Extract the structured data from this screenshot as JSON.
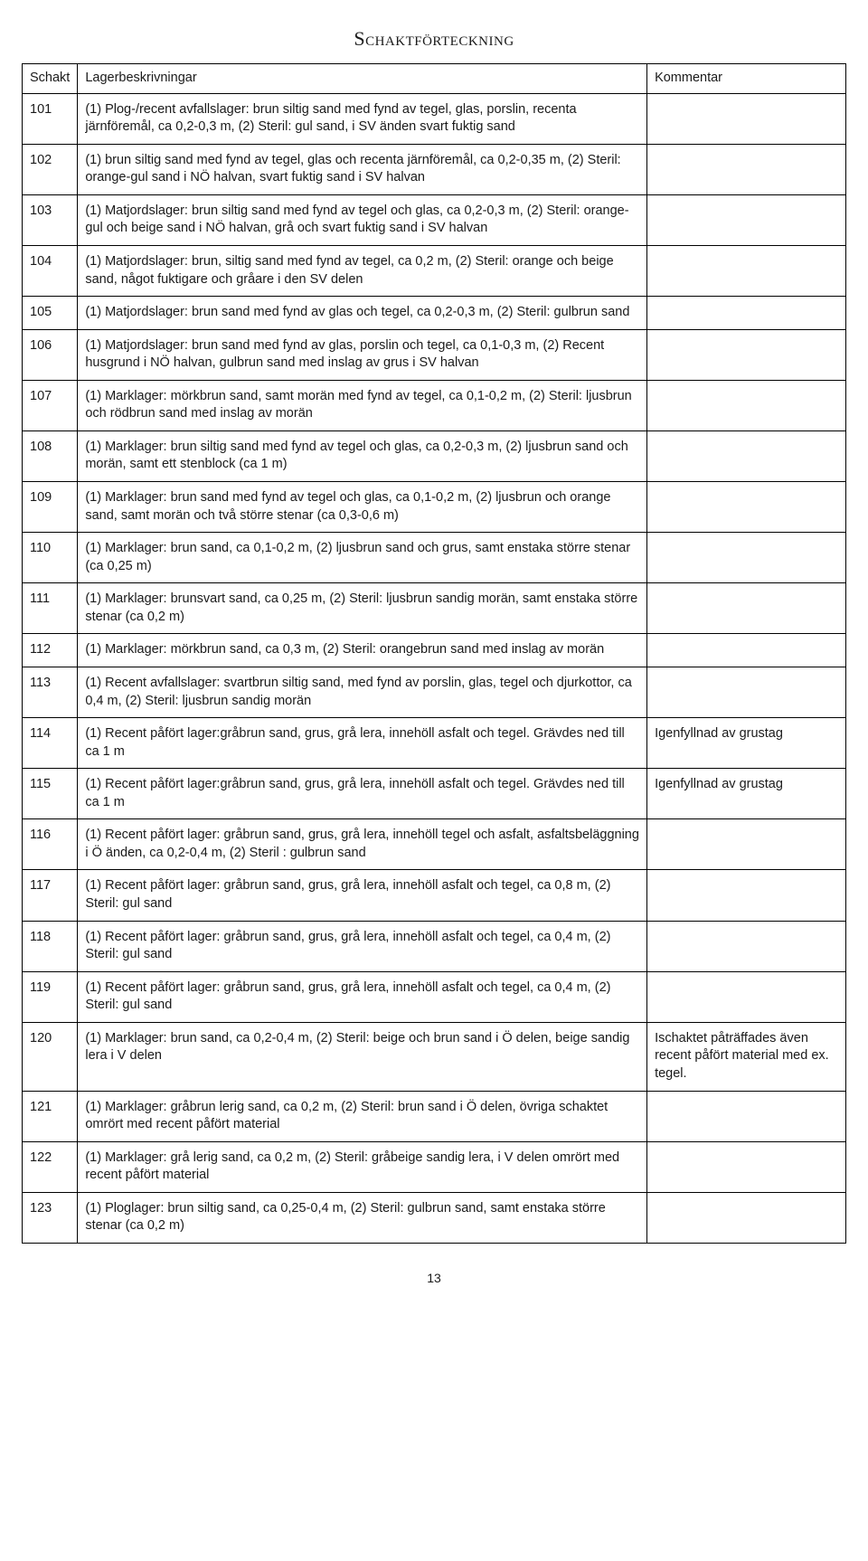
{
  "title": "Schaktförteckning",
  "headers": {
    "schakt": "Schakt",
    "lager": "Lagerbeskrivningar",
    "kommentar": "Kommentar"
  },
  "rows": [
    {
      "id": "101",
      "desc": "(1) Plog-/recent avfallslager: brun siltig sand med fynd av tegel, glas, porslin, recenta järnföremål, ca 0,2-0,3 m, (2) Steril: gul sand, i SV änden svart fuktig sand",
      "comment": ""
    },
    {
      "id": "102",
      "desc": "(1) brun siltig sand med fynd av tegel, glas och recenta järnföremål, ca 0,2-0,35 m, (2) Steril: orange-gul sand i NÖ halvan, svart fuktig sand i SV halvan",
      "comment": ""
    },
    {
      "id": "103",
      "desc": "(1) Matjordslager: brun siltig sand med fynd av tegel och glas, ca 0,2-0,3 m, (2) Steril: orange-gul och beige sand i NÖ halvan, grå och svart fuktig sand i SV halvan",
      "comment": ""
    },
    {
      "id": "104",
      "desc": "(1) Matjordslager: brun, siltig sand med fynd av tegel, ca 0,2 m, (2) Steril: orange och beige sand, något fuktigare och gråare i den SV delen",
      "comment": ""
    },
    {
      "id": "105",
      "desc": "(1) Matjordslager: brun sand med fynd av glas och tegel, ca 0,2-0,3 m, (2) Steril: gulbrun sand",
      "comment": ""
    },
    {
      "id": "106",
      "desc": "(1) Matjordslager: brun sand med fynd av glas, porslin och tegel, ca 0,1-0,3 m, (2) Recent husgrund i NÖ halvan, gulbrun sand med inslag av grus i SV halvan",
      "comment": ""
    },
    {
      "id": "107",
      "desc": "(1) Marklager: mörkbrun sand, samt morän med fynd av tegel, ca 0,1-0,2 m, (2) Steril: ljusbrun och rödbrun sand med inslag av morän",
      "comment": ""
    },
    {
      "id": "108",
      "desc": "(1) Marklager: brun siltig sand med fynd av tegel och glas, ca 0,2-0,3 m, (2) ljusbrun sand och morän, samt ett stenblock (ca 1 m)",
      "comment": ""
    },
    {
      "id": "109",
      "desc": "(1) Marklager: brun sand med fynd av tegel och glas, ca 0,1-0,2 m, (2) ljusbrun och orange sand, samt morän och två större stenar (ca 0,3-0,6 m)",
      "comment": ""
    },
    {
      "id": "110",
      "desc": "(1) Marklager: brun sand, ca 0,1-0,2 m, (2) ljusbrun sand och grus, samt enstaka större stenar (ca 0,25 m)",
      "comment": ""
    },
    {
      "id": "111",
      "desc": "(1) Marklager: brunsvart sand, ca 0,25 m, (2) Steril: ljusbrun sandig morän, samt enstaka större stenar (ca 0,2 m)",
      "comment": ""
    },
    {
      "id": "112",
      "desc": "(1) Marklager: mörkbrun sand, ca 0,3 m, (2) Steril: orangebrun sand med inslag av morän",
      "comment": ""
    },
    {
      "id": "113",
      "desc": "(1) Recent avfallslager: svartbrun siltig sand, med fynd av porslin, glas, tegel och djurkottor, ca 0,4 m, (2) Steril: ljusbrun sandig morän",
      "comment": ""
    },
    {
      "id": "114",
      "desc": "(1) Recent påfört lager:gråbrun sand, grus, grå lera, innehöll asfalt och tegel. Grävdes ned till ca 1 m",
      "comment": "Igenfyllnad av grustag"
    },
    {
      "id": "115",
      "desc": "(1) Recent påfört lager:gråbrun sand, grus, grå lera, innehöll asfalt och tegel. Grävdes ned till ca 1 m",
      "comment": "Igenfyllnad av grustag"
    },
    {
      "id": "116",
      "desc": "(1) Recent påfört lager: gråbrun sand, grus, grå lera, innehöll tegel och asfalt, asfaltsbeläggning i Ö änden, ca 0,2-0,4 m, (2) Steril : gulbrun sand",
      "comment": ""
    },
    {
      "id": "117",
      "desc": "(1) Recent påfört lager: gråbrun sand, grus, grå lera, innehöll asfalt och tegel, ca 0,8 m, (2) Steril: gul sand",
      "comment": ""
    },
    {
      "id": "118",
      "desc": "(1) Recent påfört lager: gråbrun sand, grus, grå lera, innehöll asfalt och tegel, ca 0,4 m, (2) Steril: gul sand",
      "comment": ""
    },
    {
      "id": "119",
      "desc": "(1) Recent påfört lager: gråbrun sand, grus, grå lera, innehöll asfalt och tegel, ca 0,4 m, (2) Steril: gul sand",
      "comment": ""
    },
    {
      "id": "120",
      "desc": "(1) Marklager: brun sand, ca 0,2-0,4 m, (2) Steril: beige och brun sand i Ö delen, beige sandig lera i V delen",
      "comment": "Ischaktet påträffades även recent påfört material med ex. tegel."
    },
    {
      "id": "121",
      "desc": "(1) Marklager: gråbrun lerig sand, ca 0,2 m, (2) Steril: brun sand i Ö delen, övriga schaktet omrört med recent påfört material",
      "comment": ""
    },
    {
      "id": "122",
      "desc": "(1) Marklager: grå lerig sand, ca 0,2 m, (2) Steril: gråbeige sandig lera, i V delen omrört med recent påfört material",
      "comment": ""
    },
    {
      "id": "123",
      "desc": "(1) Ploglager: brun siltig sand, ca 0,25-0,4 m, (2) Steril: gulbrun sand, samt enstaka större stenar (ca 0,2 m)",
      "comment": ""
    }
  ],
  "page_number": "13"
}
